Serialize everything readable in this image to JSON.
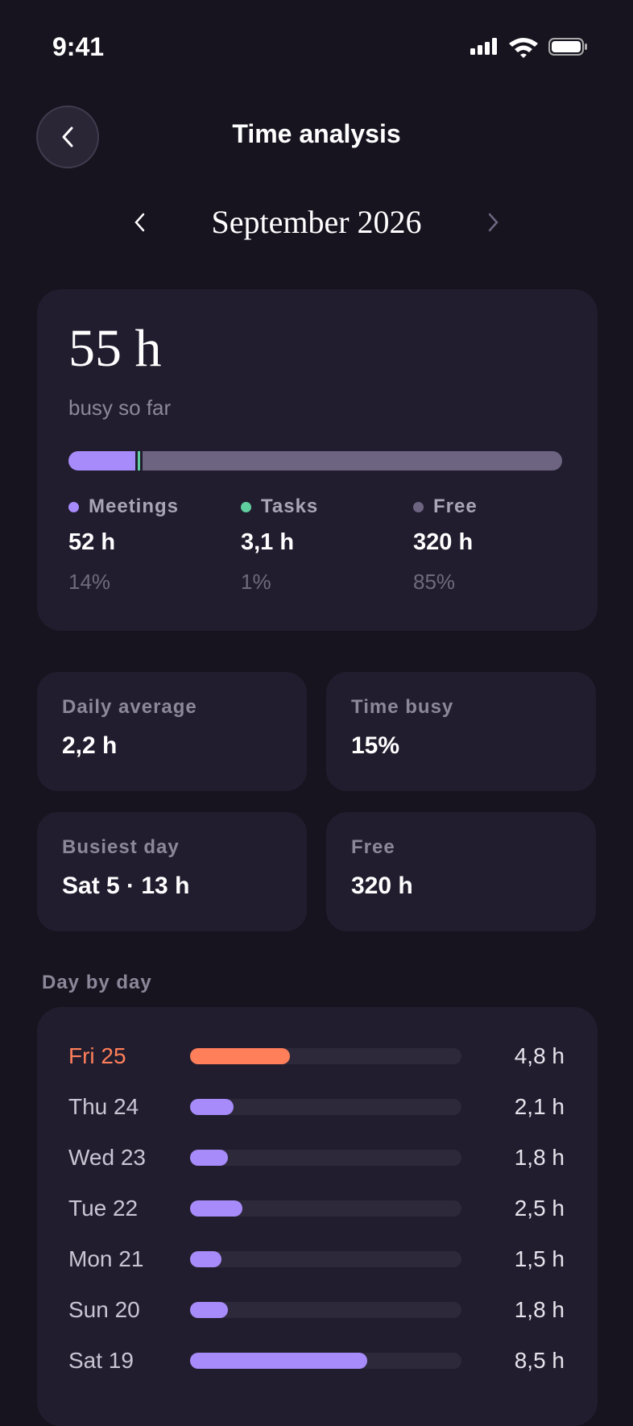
{
  "status_bar": {
    "time": "9:41"
  },
  "header": {
    "title": "Time analysis"
  },
  "period": {
    "label": "September 2026"
  },
  "summary": {
    "total": "55 h",
    "caption": "busy so far",
    "segments": [
      {
        "name": "Meetings",
        "color": "#a78bfa",
        "value_label": "52 h",
        "share": 14,
        "share_label": "14%"
      },
      {
        "name": "Tasks",
        "color": "#5fcf9f",
        "value_label": "3,1 h",
        "share": 1,
        "share_label": "1%"
      },
      {
        "name": "Free",
        "color": "#6d6482",
        "value_label": "320 h",
        "share": 85,
        "share_label": "85%"
      }
    ]
  },
  "stats": [
    {
      "label": "Daily average",
      "value": "2,2 h"
    },
    {
      "label": "Time busy",
      "value": "15%"
    },
    {
      "label": "Busiest day",
      "value": "Sat 5 · 13 h"
    },
    {
      "label": "Free",
      "value": "320 h"
    }
  ],
  "day_by_day": {
    "title": "Day by day",
    "xlim": [
      0,
      13
    ],
    "days": [
      {
        "label": "Fri 25",
        "value": 4.8,
        "value_label": "4,8 h",
        "color": "#ff7f5a"
      },
      {
        "label": "Thu 24",
        "value": 2.1,
        "value_label": "2,1 h",
        "color": "#a78bfa"
      },
      {
        "label": "Wed 23",
        "value": 1.8,
        "value_label": "1,8 h",
        "color": "#a78bfa"
      },
      {
        "label": "Tue 22",
        "value": 2.5,
        "value_label": "2,5 h",
        "color": "#a78bfa"
      },
      {
        "label": "Mon 21",
        "value": 1.5,
        "value_label": "1,5 h",
        "color": "#a78bfa"
      },
      {
        "label": "Sun 20",
        "value": 1.8,
        "value_label": "1,8 h",
        "color": "#a78bfa"
      },
      {
        "label": "Sat 19",
        "value": 8.5,
        "value_label": "8,5 h",
        "color": "#a78bfa"
      }
    ]
  }
}
